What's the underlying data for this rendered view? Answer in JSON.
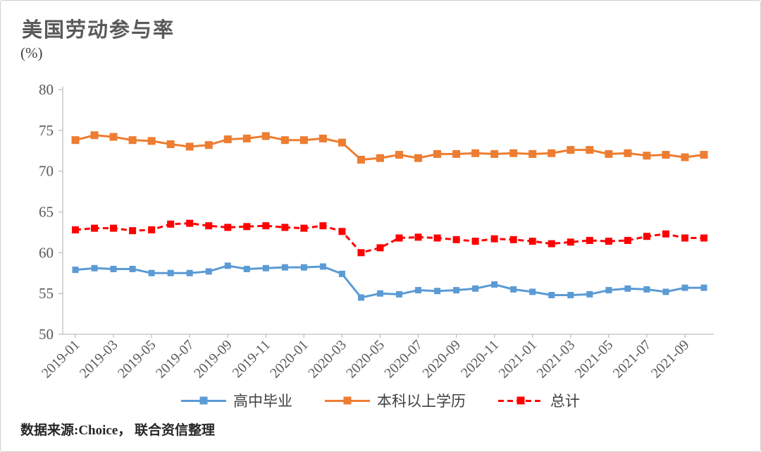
{
  "chart": {
    "title": "美国劳动参与率",
    "unit_label": "(%)",
    "source_note": "数据来源:Choice， 联合资信整理"
  },
  "chart_data": {
    "type": "line",
    "title": "美国劳动参与率",
    "ylabel": "(%)",
    "ylim": [
      50,
      80
    ],
    "ytick_step": 5,
    "grid": false,
    "legend_position": "bottom",
    "x_tick_labels": [
      "2019-01",
      "2019-03",
      "2019-05",
      "2019-07",
      "2019-09",
      "2019-11",
      "2020-01",
      "2020-03",
      "2020-05",
      "2020-07",
      "2020-09",
      "2020-11",
      "2021-01",
      "2021-03",
      "2021-05",
      "2021-07",
      "2021-09"
    ],
    "categories": [
      "2019-01",
      "2019-02",
      "2019-03",
      "2019-04",
      "2019-05",
      "2019-06",
      "2019-07",
      "2019-08",
      "2019-09",
      "2019-10",
      "2019-11",
      "2019-12",
      "2020-01",
      "2020-02",
      "2020-03",
      "2020-04",
      "2020-05",
      "2020-06",
      "2020-07",
      "2020-08",
      "2020-09",
      "2020-10",
      "2020-11",
      "2020-12",
      "2021-01",
      "2021-02",
      "2021-03",
      "2021-04",
      "2021-05",
      "2021-06",
      "2021-07",
      "2021-08",
      "2021-09",
      "2021-10"
    ],
    "series": [
      {
        "name": "高中毕业",
        "color": "#5B9BD5",
        "style": "solid",
        "values": [
          57.9,
          58.1,
          58.0,
          58.0,
          57.5,
          57.5,
          57.5,
          57.7,
          58.4,
          58.0,
          58.1,
          58.2,
          58.2,
          58.3,
          57.4,
          54.5,
          55.0,
          54.9,
          55.4,
          55.3,
          55.4,
          55.6,
          56.1,
          55.5,
          55.2,
          54.8,
          54.8,
          54.9,
          55.4,
          55.6,
          55.5,
          55.2,
          55.7,
          55.7
        ]
      },
      {
        "name": "本科以上学历",
        "color": "#ED7D31",
        "style": "solid",
        "values": [
          73.8,
          74.4,
          74.2,
          73.8,
          73.7,
          73.3,
          73.0,
          73.2,
          73.9,
          74.0,
          74.3,
          73.8,
          73.8,
          74.0,
          73.5,
          71.4,
          71.6,
          72.0,
          71.6,
          72.1,
          72.1,
          72.2,
          72.1,
          72.2,
          72.1,
          72.2,
          72.6,
          72.6,
          72.1,
          72.2,
          71.9,
          72.0,
          71.7,
          72.0
        ]
      },
      {
        "name": "总计",
        "color": "#FF0000",
        "style": "dashed",
        "values": [
          62.8,
          63.0,
          63.0,
          62.7,
          62.8,
          63.5,
          63.6,
          63.3,
          63.1,
          63.2,
          63.3,
          63.1,
          63.0,
          63.3,
          62.6,
          60.0,
          60.6,
          61.8,
          61.9,
          61.8,
          61.6,
          61.4,
          61.7,
          61.6,
          61.4,
          61.1,
          61.3,
          61.5,
          61.4,
          61.5,
          62.0,
          62.3,
          61.8,
          61.8
        ]
      }
    ]
  }
}
